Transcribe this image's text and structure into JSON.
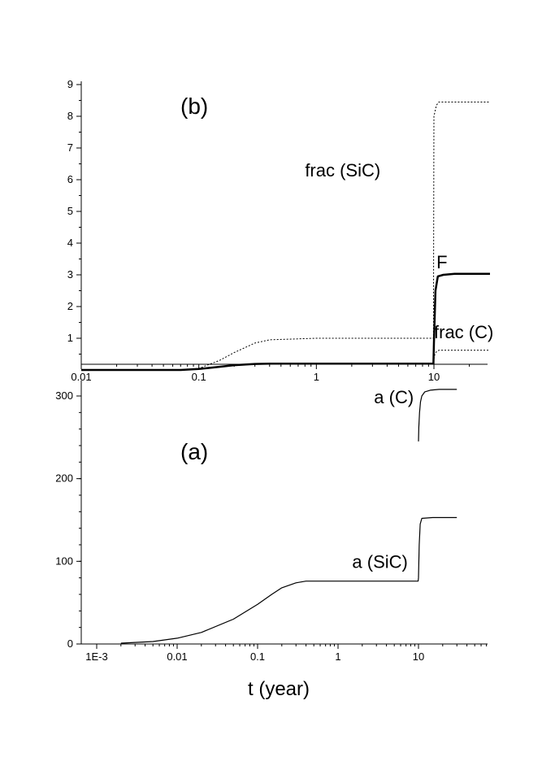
{
  "chart_data": [
    {
      "panel": "(b)",
      "type": "line",
      "xscale": "log",
      "xlim": [
        0.01,
        30
      ],
      "ylim": [
        0,
        9
      ],
      "x_ticks": [
        {
          "v": 0.01,
          "label": "0.01"
        },
        {
          "v": 0.1,
          "label": "0.1"
        },
        {
          "v": 1,
          "label": "1"
        },
        {
          "v": 10,
          "label": "10"
        }
      ],
      "y_ticks": [
        {
          "v": 1,
          "label": "1"
        },
        {
          "v": 2,
          "label": "2"
        },
        {
          "v": 3,
          "label": "3"
        },
        {
          "v": 4,
          "label": "4"
        },
        {
          "v": 5,
          "label": "5"
        },
        {
          "v": 6,
          "label": "6"
        },
        {
          "v": 7,
          "label": "7"
        },
        {
          "v": 8,
          "label": "8"
        },
        {
          "v": 9,
          "label": "9"
        }
      ],
      "series": [
        {
          "name": "frac (SiC)",
          "style": "dotted",
          "x": [
            0.01,
            0.07,
            0.1,
            0.15,
            0.2,
            0.3,
            0.4,
            1,
            5,
            9.9,
            10,
            10.5,
            11,
            15,
            30
          ],
          "y": [
            0,
            0,
            0.05,
            0.3,
            0.55,
            0.85,
            0.95,
            1,
            1,
            1,
            8.0,
            8.35,
            8.45,
            8.45,
            8.45
          ]
        },
        {
          "name": "F",
          "style": "thick",
          "x": [
            0.01,
            0.07,
            0.1,
            0.15,
            0.2,
            0.3,
            0.4,
            1,
            5,
            9.9,
            10,
            10.3,
            10.8,
            12,
            15,
            30
          ],
          "y": [
            0,
            0,
            0.03,
            0.1,
            0.15,
            0.19,
            0.2,
            0.2,
            0.2,
            0.2,
            0.85,
            2.5,
            2.95,
            3.0,
            3.03,
            3.03
          ]
        },
        {
          "name": "frac (C)",
          "style": "dotted",
          "x": [
            10,
            10.2,
            10.5,
            11,
            15,
            30
          ],
          "y": [
            0.35,
            0.5,
            0.58,
            0.62,
            0.62,
            0.62
          ]
        }
      ],
      "annotations": [
        {
          "text": "frac (SiC)",
          "x": 0.8,
          "y": 6.1
        },
        {
          "text": "F",
          "x": 10.5,
          "y": 3.2
        },
        {
          "text": "frac (C)",
          "x": 10.0,
          "y": 1.0
        }
      ]
    },
    {
      "panel": "(a)",
      "type": "line",
      "xscale": "log",
      "xlim": [
        0.001,
        60
      ],
      "ylim": [
        0,
        320
      ],
      "x_ticks": [
        {
          "v": 0.001,
          "label": "1E-3"
        },
        {
          "v": 0.01,
          "label": "0.01"
        },
        {
          "v": 0.1,
          "label": "0.1"
        },
        {
          "v": 1,
          "label": "1"
        },
        {
          "v": 10,
          "label": "10"
        }
      ],
      "y_ticks": [
        {
          "v": 0,
          "label": "0"
        },
        {
          "v": 100,
          "label": "100"
        },
        {
          "v": 200,
          "label": "200"
        },
        {
          "v": 300,
          "label": "300"
        }
      ],
      "xlabel": "t (year)",
      "series": [
        {
          "name": "a (SiC)",
          "style": "solid",
          "x": [
            0.002,
            0.005,
            0.01,
            0.02,
            0.05,
            0.1,
            0.15,
            0.2,
            0.3,
            0.4,
            0.6,
            1,
            5,
            9.9,
            10,
            10.2,
            10.5,
            11,
            15,
            30
          ],
          "y": [
            1,
            3,
            7,
            14,
            30,
            48,
            60,
            68,
            74,
            76,
            76,
            76,
            76,
            76,
            80,
            120,
            145,
            152,
            153,
            153
          ]
        },
        {
          "name": "a (C)",
          "style": "solid",
          "x": [
            10,
            10.1,
            10.3,
            10.6,
            11,
            12,
            14,
            18,
            30
          ],
          "y": [
            245,
            262,
            280,
            293,
            300,
            305,
            307,
            308,
            308
          ]
        }
      ],
      "annotations": [
        {
          "text": "a (C)",
          "x": 2.8,
          "y": 291
        },
        {
          "text": "a (SiC)",
          "x": 1.5,
          "y": 92
        }
      ]
    }
  ],
  "labels": {
    "panel_b": "(b)",
    "panel_a": "(a)",
    "xlabel": "t (year)"
  }
}
